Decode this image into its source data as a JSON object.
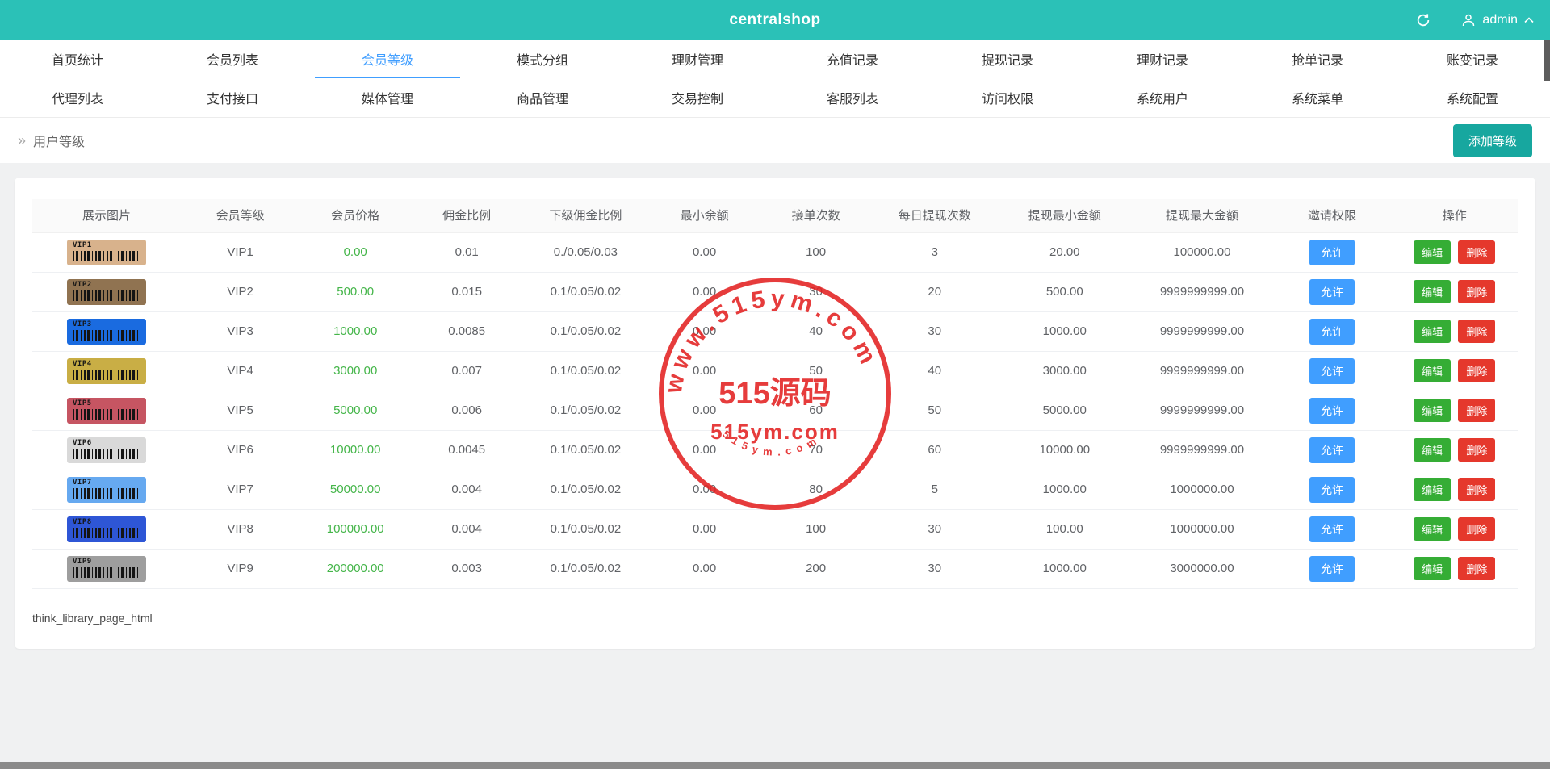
{
  "header": {
    "title": "centralshop",
    "user": "admin"
  },
  "icons": {
    "refresh": "refresh-icon",
    "user": "user-icon",
    "chevron_up": "chevron-up-icon",
    "breadcrumb_arrow": "»"
  },
  "nav": {
    "row1": [
      {
        "label": "首页统计",
        "active": false
      },
      {
        "label": "会员列表",
        "active": false
      },
      {
        "label": "会员等级",
        "active": true
      },
      {
        "label": "模式分组",
        "active": false
      },
      {
        "label": "理财管理",
        "active": false
      },
      {
        "label": "充值记录",
        "active": false
      },
      {
        "label": "提现记录",
        "active": false
      },
      {
        "label": "理财记录",
        "active": false
      },
      {
        "label": "抢单记录",
        "active": false
      },
      {
        "label": "账变记录",
        "active": false
      }
    ],
    "row2": [
      {
        "label": "代理列表",
        "active": false
      },
      {
        "label": "支付接口",
        "active": false
      },
      {
        "label": "媒体管理",
        "active": false
      },
      {
        "label": "商品管理",
        "active": false
      },
      {
        "label": "交易控制",
        "active": false
      },
      {
        "label": "客服列表",
        "active": false
      },
      {
        "label": "访问权限",
        "active": false
      },
      {
        "label": "系统用户",
        "active": false
      },
      {
        "label": "系统菜单",
        "active": false
      },
      {
        "label": "系统配置",
        "active": false
      }
    ]
  },
  "breadcrumb": {
    "label": "用户等级",
    "add_button": "添加等级"
  },
  "table": {
    "headers": [
      "展示图片",
      "会员等级",
      "会员价格",
      "佣金比例",
      "下级佣金比例",
      "最小余额",
      "接单次数",
      "每日提现次数",
      "提现最小金额",
      "提现最大金额",
      "邀请权限",
      "操作"
    ],
    "actions": {
      "allow": "允许",
      "edit": "编辑",
      "delete": "删除"
    },
    "rows": [
      {
        "level": "VIP1",
        "card_color": "#d8b28c",
        "price": "0.00",
        "commission": "0.01",
        "sub_commission": "0./0.05/0.03",
        "min_balance": "0.00",
        "orders": "100",
        "daily_withdraw": "3",
        "min_withdraw": "20.00",
        "max_withdraw": "100000.00"
      },
      {
        "level": "VIP2",
        "card_color": "#907351",
        "price": "500.00",
        "commission": "0.015",
        "sub_commission": "0.1/0.05/0.02",
        "min_balance": "0.00",
        "orders": "30",
        "daily_withdraw": "20",
        "min_withdraw": "500.00",
        "max_withdraw": "9999999999.00"
      },
      {
        "level": "VIP3",
        "card_color": "#1a6be0",
        "price": "1000.00",
        "commission": "0.0085",
        "sub_commission": "0.1/0.05/0.02",
        "min_balance": "0.00",
        "orders": "40",
        "daily_withdraw": "30",
        "min_withdraw": "1000.00",
        "max_withdraw": "9999999999.00"
      },
      {
        "level": "VIP4",
        "card_color": "#c9ae45",
        "price": "3000.00",
        "commission": "0.007",
        "sub_commission": "0.1/0.05/0.02",
        "min_balance": "0.00",
        "orders": "50",
        "daily_withdraw": "40",
        "min_withdraw": "3000.00",
        "max_withdraw": "9999999999.00"
      },
      {
        "level": "VIP5",
        "card_color": "#c65562",
        "price": "5000.00",
        "commission": "0.006",
        "sub_commission": "0.1/0.05/0.02",
        "min_balance": "0.00",
        "orders": "60",
        "daily_withdraw": "50",
        "min_withdraw": "5000.00",
        "max_withdraw": "9999999999.00"
      },
      {
        "level": "VIP6",
        "card_color": "#d9d9d9",
        "price": "10000.00",
        "commission": "0.0045",
        "sub_commission": "0.1/0.05/0.02",
        "min_balance": "0.00",
        "orders": "70",
        "daily_withdraw": "60",
        "min_withdraw": "10000.00",
        "max_withdraw": "9999999999.00"
      },
      {
        "level": "VIP7",
        "card_color": "#66a9f0",
        "price": "50000.00",
        "commission": "0.004",
        "sub_commission": "0.1/0.05/0.02",
        "min_balance": "0.00",
        "orders": "80",
        "daily_withdraw": "5",
        "min_withdraw": "1000.00",
        "max_withdraw": "1000000.00"
      },
      {
        "level": "VIP8",
        "card_color": "#2e56d6",
        "price": "100000.00",
        "commission": "0.004",
        "sub_commission": "0.1/0.05/0.02",
        "min_balance": "0.00",
        "orders": "100",
        "daily_withdraw": "30",
        "min_withdraw": "100.00",
        "max_withdraw": "1000000.00"
      },
      {
        "level": "VIP9",
        "card_color": "#9e9e9e",
        "price": "200000.00",
        "commission": "0.003",
        "sub_commission": "0.1/0.05/0.02",
        "min_balance": "0.00",
        "orders": "200",
        "daily_withdraw": "30",
        "min_withdraw": "1000.00",
        "max_withdraw": "3000000.00"
      }
    ]
  },
  "watermark": {
    "arc_top": "www.515ym.com",
    "center": "515源码",
    "line2": "515ym.com",
    "arc_bottom": "515ym.com"
  },
  "footer_note": "think_library_page_html",
  "colors": {
    "header_teal": "#2bc1b7",
    "add_button_teal": "#17a79f",
    "accent_blue": "#409eff",
    "price_green": "#44b549",
    "edit_green": "#35ad35",
    "delete_red": "#e5382c",
    "stamp_red": "#e32222"
  }
}
